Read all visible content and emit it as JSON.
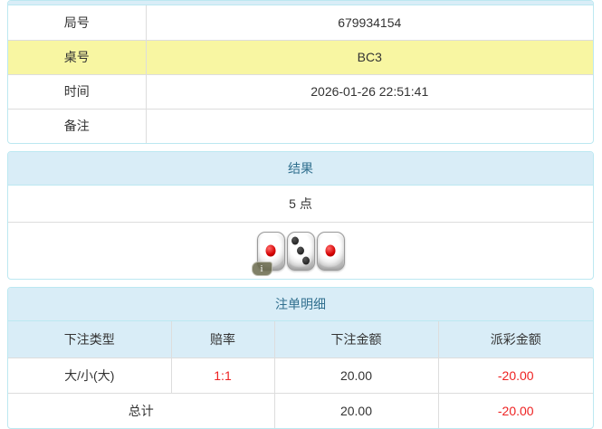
{
  "colors": {
    "panel_border": "#bce8f1",
    "heading_bg": "#d9edf7",
    "heading_text": "#31708f",
    "row_border": "#dddddd",
    "highlight_yellow": "#f8f6a2",
    "text": "#333333",
    "negative_red": "#ee2222"
  },
  "game_info": {
    "rows": [
      {
        "label": "局号",
        "value": "679934154",
        "highlight": false
      },
      {
        "label": "桌号",
        "value": "BC3",
        "highlight": true
      },
      {
        "label": "时间",
        "value": "2026-01-26 22:51:41",
        "highlight": false
      },
      {
        "label": "备注",
        "value": "",
        "highlight": false
      }
    ]
  },
  "result": {
    "heading": "结果",
    "points": "5 点",
    "dice": [
      {
        "value": 1,
        "color": "red"
      },
      {
        "value": 3,
        "color": "black"
      },
      {
        "value": 1,
        "color": "red"
      }
    ],
    "info_icon": "i"
  },
  "bets": {
    "heading": "注单明细",
    "columns": [
      "下注类型",
      "赔率",
      "下注金额",
      "派彩金额"
    ],
    "rows": [
      {
        "type": "大/小(大)",
        "odds": "1:1",
        "amount": "20.00",
        "payout": "-20.00"
      }
    ],
    "total": {
      "label": "总计",
      "amount": "20.00",
      "payout": "-20.00"
    }
  }
}
